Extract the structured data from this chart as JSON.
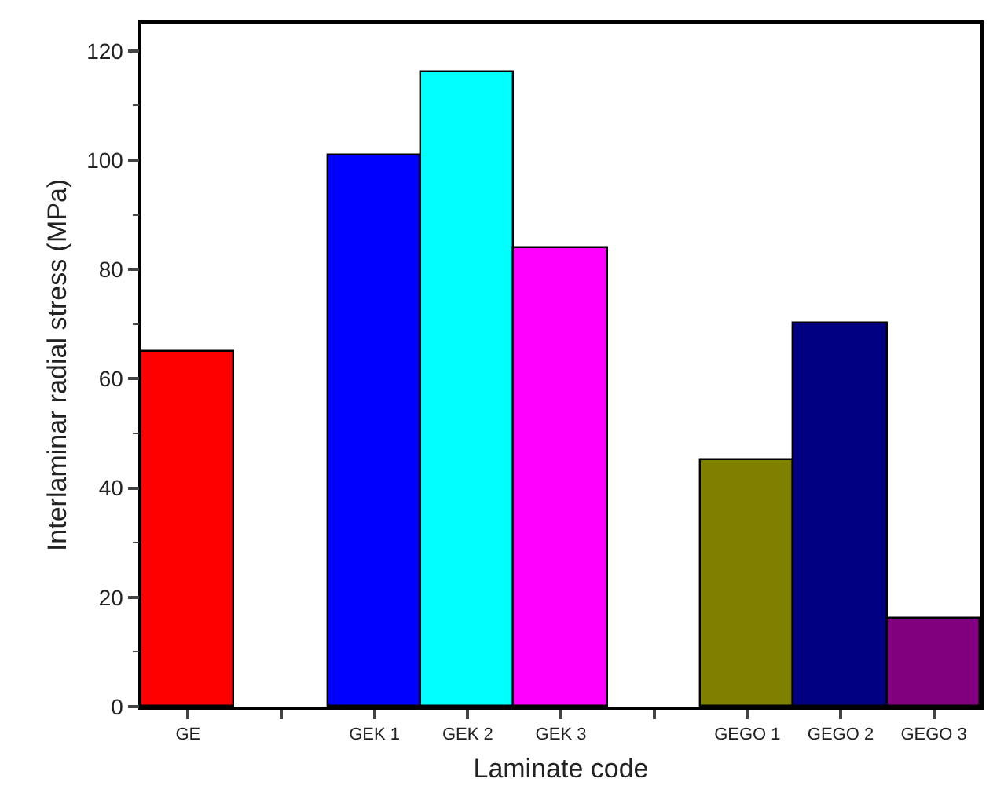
{
  "chart_data": {
    "type": "bar",
    "xlabel": "Laminate code",
    "ylabel": "Interlaminar radial stress (MPa)",
    "categories": [
      "GE",
      null,
      "GEK 1",
      "GEK 2",
      "GEK 3",
      null,
      "GEGO 1",
      "GEGO 2",
      "GEGO 3"
    ],
    "values": [
      65,
      null,
      101,
      116,
      84,
      null,
      45,
      70,
      16
    ],
    "colors": [
      "#ff0000",
      "#ffffff",
      "#0000ff",
      "#00ffff",
      "#ff00ff",
      "#ffffff",
      "#808000",
      "#000080",
      "#800080"
    ],
    "yticks": [
      0,
      {
        "value": 10,
        "label": null
      },
      20,
      {
        "value": 30,
        "label": null
      },
      40,
      {
        "value": 50,
        "label": null
      },
      60,
      {
        "value": 70,
        "label": null
      },
      80,
      {
        "value": 90,
        "label": null
      },
      100,
      {
        "value": 110,
        "label": null
      },
      120
    ],
    "ylim": [
      0,
      125
    ]
  }
}
